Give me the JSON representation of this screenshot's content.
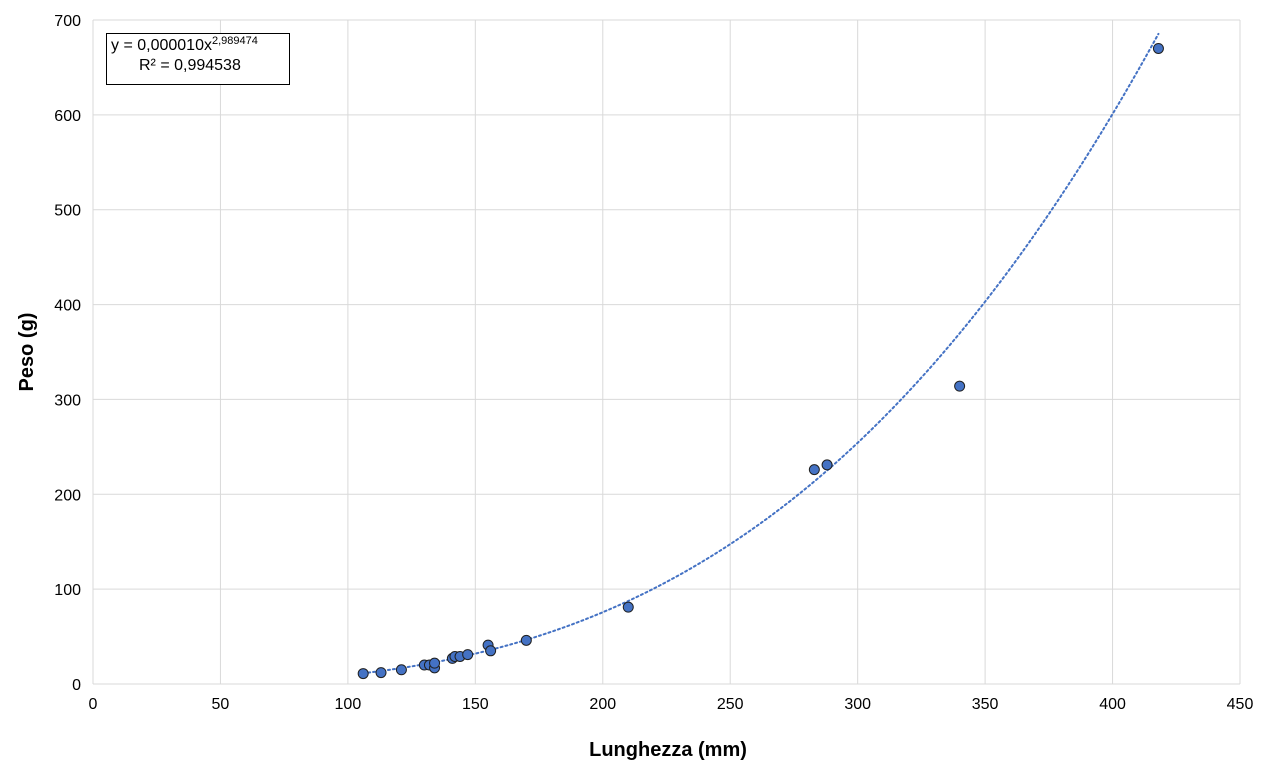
{
  "chart_data": {
    "type": "scatter",
    "xlabel": "Lunghezza (mm)",
    "ylabel": "Peso (g)",
    "xlim": [
      0,
      450
    ],
    "ylim": [
      0,
      700
    ],
    "x_ticks": [
      "0",
      "50",
      "100",
      "150",
      "200",
      "250",
      "300",
      "350",
      "400",
      "450"
    ],
    "y_ticks": [
      "0",
      "100",
      "200",
      "300",
      "400",
      "500",
      "600",
      "700"
    ],
    "grid": true,
    "marker_color": "#4472C4",
    "trendline_color": "#4472C4",
    "points": [
      {
        "x": 106,
        "y": 11
      },
      {
        "x": 113,
        "y": 12
      },
      {
        "x": 121,
        "y": 15
      },
      {
        "x": 130,
        "y": 20
      },
      {
        "x": 132,
        "y": 20
      },
      {
        "x": 134,
        "y": 17
      },
      {
        "x": 134,
        "y": 22
      },
      {
        "x": 141,
        "y": 27
      },
      {
        "x": 142,
        "y": 29
      },
      {
        "x": 144,
        "y": 29
      },
      {
        "x": 147,
        "y": 31
      },
      {
        "x": 155,
        "y": 41
      },
      {
        "x": 156,
        "y": 35
      },
      {
        "x": 170,
        "y": 46
      },
      {
        "x": 210,
        "y": 81
      },
      {
        "x": 283,
        "y": 226
      },
      {
        "x": 288,
        "y": 231
      },
      {
        "x": 340,
        "y": 314
      },
      {
        "x": 418,
        "y": 670
      }
    ],
    "trendline": {
      "type": "power",
      "coefficient": 1e-05,
      "exponent": 2.989474,
      "x_range": [
        106,
        418
      ],
      "equation_prefix": "y = 0,000010x",
      "equation_exponent": "2,989474",
      "r_squared_label": "R² = 0,994538"
    }
  }
}
